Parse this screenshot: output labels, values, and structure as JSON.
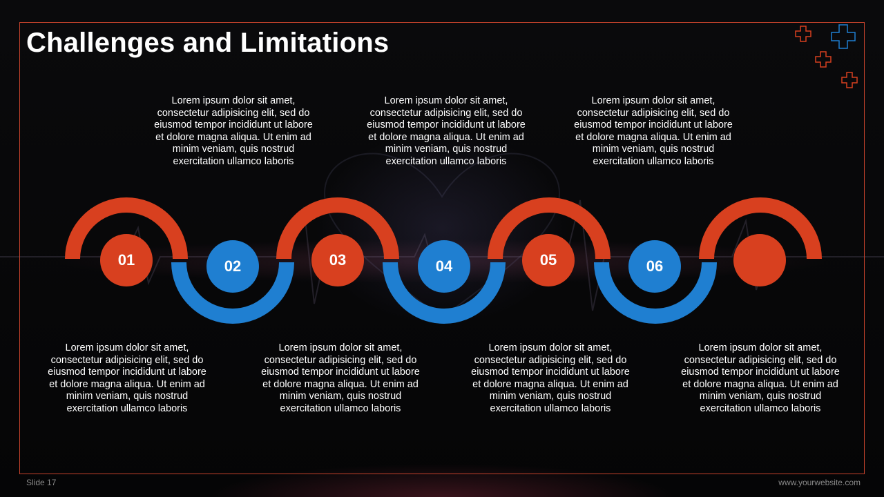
{
  "title": "Challenges and Limitations",
  "colors": {
    "accent_red": "#d8401f",
    "accent_blue": "#1f7fd1",
    "frame": "#c9432c",
    "background": "#070708"
  },
  "icons": [
    "medical-cross-icon"
  ],
  "steps": [
    {
      "number": "01",
      "color": "red",
      "text": "Lorem ipsum dolor sit amet, consectetur adipisicing elit, sed do eiusmod tempor incididunt ut labore et dolore magna aliqua. Ut enim ad minim veniam, quis nostrud exercitation ullamco laboris"
    },
    {
      "number": "02",
      "color": "blue",
      "text": "Lorem ipsum dolor sit amet, consectetur adipisicing elit, sed do eiusmod tempor incididunt ut labore et dolore magna aliqua. Ut enim ad minim veniam, quis nostrud exercitation ullamco laboris"
    },
    {
      "number": "03",
      "color": "red",
      "text": "Lorem ipsum dolor sit amet, consectetur adipisicing elit, sed do eiusmod tempor incididunt ut labore et dolore magna aliqua. Ut enim ad minim veniam, quis nostrud exercitation ullamco laboris"
    },
    {
      "number": "04",
      "color": "blue",
      "text": "Lorem ipsum dolor sit amet, consectetur adipisicing elit, sed do eiusmod tempor incididunt ut labore et dolore magna aliqua. Ut enim ad minim veniam, quis nostrud exercitation ullamco laboris"
    },
    {
      "number": "05",
      "color": "red",
      "text": "Lorem ipsum dolor sit amet, consectetur adipisicing elit, sed do eiusmod tempor incididunt ut labore et dolore magna aliqua. Ut enim ad minim veniam, quis nostrud exercitation ullamco laboris"
    },
    {
      "number": "06",
      "color": "blue",
      "text": "Lorem ipsum dolor sit amet, consectetur adipisicing elit, sed do eiusmod tempor incididunt ut labore et dolore magna aliqua. Ut enim ad minim veniam, quis nostrud exercitation ullamco laboris"
    },
    {
      "number": "",
      "color": "red",
      "text": "Lorem ipsum dolor sit amet, consectetur adipisicing elit, sed do eiusmod tempor incididunt ut labore et dolore magna aliqua. Ut enim ad minim veniam, quis nostrud exercitation ullamco laboris"
    }
  ],
  "footer": {
    "slide_label": "Slide 17",
    "website": "www.yourwebsite.com"
  }
}
